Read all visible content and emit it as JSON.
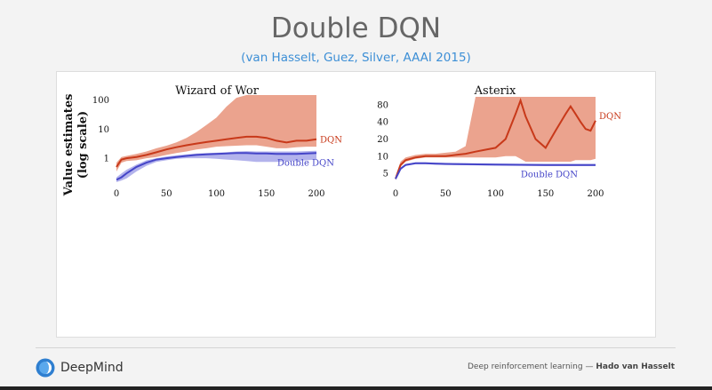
{
  "slide": {
    "title": "Double DQN",
    "subtitle": "(van Hasselt, Guez, Silver, AAAI 2015)"
  },
  "footer": {
    "logo_text": "DeepMind",
    "course": "Deep reinforcement learning —",
    "author": "Hado van Hasselt"
  },
  "colors": {
    "dqn": "#c8391a",
    "dqn_band": "#e8937a",
    "ddqn": "#4545c8",
    "ddqn_band": "#9a9ae6",
    "subtitle": "#3d8fd6"
  },
  "shared_ylabel": [
    "Value estimates",
    "(log scale)"
  ],
  "chart_data": [
    {
      "type": "line",
      "title": "Wizard of Wor",
      "xlabel": "",
      "ylabel": "Value estimates (log scale)",
      "yscale": "log",
      "xlim": [
        0,
        200
      ],
      "ylim": [
        0.15,
        130
      ],
      "xticks": [
        0,
        50,
        100,
        150,
        200
      ],
      "yticks": [
        1,
        10,
        100
      ],
      "grid": false,
      "series": [
        {
          "name": "DQN",
          "x": [
            0,
            5,
            10,
            20,
            30,
            40,
            50,
            60,
            70,
            80,
            90,
            100,
            110,
            120,
            130,
            140,
            150,
            160,
            170,
            180,
            190,
            200
          ],
          "values": [
            0.5,
            0.9,
            1.0,
            1.1,
            1.3,
            1.6,
            2.0,
            2.4,
            2.8,
            3.2,
            3.6,
            4.0,
            4.5,
            5.0,
            5.5,
            5.5,
            5.0,
            4.0,
            3.5,
            4.0,
            4.0,
            4.5
          ],
          "upper": [
            0.7,
            1.1,
            1.2,
            1.4,
            1.7,
            2.2,
            2.7,
            3.5,
            5,
            8,
            14,
            25,
            60,
            120,
            150,
            150,
            150,
            150,
            150,
            150,
            150,
            150
          ],
          "lower": [
            0.35,
            0.7,
            0.8,
            0.85,
            1.0,
            1.1,
            1.3,
            1.5,
            1.7,
            2.0,
            2.2,
            2.5,
            2.6,
            2.7,
            2.8,
            2.8,
            2.5,
            2.2,
            2.2,
            2.4,
            2.5,
            2.5
          ]
        },
        {
          "name": "Double DQN",
          "x": [
            0,
            5,
            10,
            20,
            30,
            40,
            50,
            60,
            70,
            80,
            90,
            100,
            110,
            120,
            130,
            140,
            150,
            160,
            170,
            180,
            190,
            200
          ],
          "values": [
            0.18,
            0.22,
            0.3,
            0.5,
            0.7,
            0.9,
            1.0,
            1.1,
            1.2,
            1.3,
            1.35,
            1.4,
            1.45,
            1.5,
            1.5,
            1.45,
            1.45,
            1.4,
            1.4,
            1.4,
            1.45,
            1.5
          ],
          "upper": [
            0.22,
            0.3,
            0.4,
            0.6,
            0.85,
            1.0,
            1.15,
            1.25,
            1.35,
            1.45,
            1.5,
            1.55,
            1.6,
            1.7,
            1.75,
            1.7,
            1.7,
            1.7,
            1.7,
            1.7,
            1.75,
            1.8
          ],
          "lower": [
            0.15,
            0.17,
            0.2,
            0.35,
            0.55,
            0.75,
            0.85,
            0.95,
            1.0,
            1.0,
            1.0,
            0.95,
            0.9,
            0.85,
            0.8,
            0.75,
            0.75,
            0.75,
            0.8,
            0.8,
            0.85,
            0.9
          ]
        }
      ]
    },
    {
      "type": "line",
      "title": "Asterix",
      "xlabel": "",
      "ylabel": "Value estimates (log scale)",
      "yscale": "log",
      "xlim": [
        0,
        200
      ],
      "ylim": [
        3.5,
        110
      ],
      "xticks": [
        0,
        50,
        100,
        150,
        200
      ],
      "yticks": [
        5,
        10,
        20,
        40,
        80
      ],
      "grid": false,
      "series": [
        {
          "name": "DQN",
          "x": [
            0,
            5,
            10,
            20,
            30,
            40,
            50,
            60,
            70,
            80,
            90,
            100,
            110,
            120,
            125,
            130,
            140,
            150,
            160,
            170,
            175,
            180,
            185,
            190,
            195,
            200
          ],
          "values": [
            4,
            7,
            8.5,
            9.5,
            10,
            10,
            10,
            10.5,
            11,
            12,
            13,
            14,
            20,
            55,
            95,
            50,
            20,
            14,
            28,
            55,
            75,
            55,
            40,
            30,
            28,
            42
          ],
          "upper": [
            4.5,
            8,
            9.5,
            10.5,
            11,
            11,
            11.5,
            12,
            15,
            110,
            110,
            110,
            110,
            110,
            110,
            110,
            110,
            110,
            110,
            110,
            110,
            110,
            110,
            110,
            110,
            110
          ],
          "lower": [
            3.8,
            6.5,
            8,
            9,
            9.5,
            9.5,
            9.5,
            9.5,
            9.5,
            9.5,
            9.5,
            9.5,
            10,
            10,
            9,
            8,
            8,
            8,
            8,
            8,
            8,
            8.5,
            8.5,
            8.5,
            8.5,
            9
          ]
        },
        {
          "name": "Double DQN",
          "x": [
            0,
            5,
            10,
            20,
            30,
            40,
            50,
            100,
            150,
            200
          ],
          "values": [
            4,
            6,
            7,
            7.5,
            7.5,
            7.4,
            7.3,
            7.1,
            7.0,
            7.0
          ],
          "upper": [
            4.2,
            6.3,
            7.3,
            7.8,
            7.8,
            7.7,
            7.6,
            7.4,
            7.3,
            7.3
          ],
          "lower": [
            3.8,
            5.7,
            6.7,
            7.2,
            7.2,
            7.1,
            7.0,
            6.8,
            6.7,
            6.7
          ]
        }
      ]
    }
  ]
}
